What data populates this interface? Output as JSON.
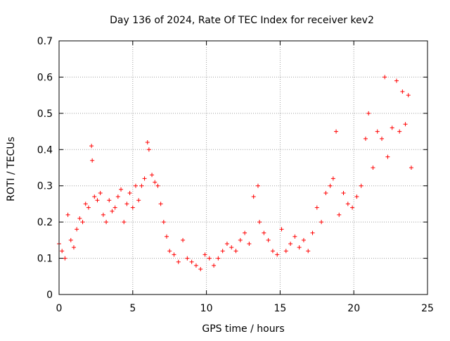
{
  "chart_data": {
    "type": "scatter",
    "title": "Day 136 of 2024, Rate Of TEC Index for receiver kev2",
    "xlabel": "GPS time / hours",
    "ylabel": "ROTI / TECUs",
    "xlim": [
      0,
      25
    ],
    "ylim": [
      0,
      0.7
    ],
    "x_ticks": [
      "0",
      "5",
      "10",
      "15",
      "20",
      "25"
    ],
    "y_ticks": [
      "0",
      "0.1",
      "0.2",
      "0.3",
      "0.4",
      "0.5",
      "0.6",
      "0.7"
    ],
    "grid": true,
    "legend": "none",
    "marker": "+",
    "color": "#ff0000",
    "series": [
      {
        "x": [
          0.0,
          0.2,
          0.4,
          0.6,
          0.8,
          1.0,
          1.2,
          1.4,
          1.6,
          1.8,
          2.0,
          2.2,
          2.25,
          2.4,
          2.6,
          2.8,
          3.0,
          3.2,
          3.4,
          3.6,
          3.8,
          4.0,
          4.2,
          4.4,
          4.6,
          4.8,
          5.0,
          5.2,
          5.4,
          5.6,
          5.8,
          6.0,
          6.1,
          6.3,
          6.5,
          6.7,
          6.9,
          7.1,
          7.3,
          7.5,
          7.8,
          8.1,
          8.4,
          8.7,
          9.0,
          9.3,
          9.6,
          9.9,
          10.2,
          10.5,
          10.8,
          11.1,
          11.4,
          11.7,
          12.0,
          12.3,
          12.6,
          12.9,
          13.2,
          13.5,
          13.6,
          13.9,
          14.2,
          14.5,
          14.8,
          15.1,
          15.4,
          15.7,
          16.0,
          16.3,
          16.6,
          16.9,
          17.2,
          17.5,
          17.8,
          18.1,
          18.4,
          18.6,
          18.8,
          19.0,
          19.3,
          19.6,
          19.9,
          20.2,
          20.5,
          20.8,
          21.0,
          21.3,
          21.6,
          21.9,
          22.1,
          22.3,
          22.6,
          22.9,
          23.1,
          23.3,
          23.5,
          23.7,
          23.9
        ],
        "y": [
          0.14,
          0.12,
          0.1,
          0.22,
          0.15,
          0.13,
          0.18,
          0.21,
          0.2,
          0.25,
          0.24,
          0.41,
          0.37,
          0.27,
          0.26,
          0.28,
          0.22,
          0.2,
          0.26,
          0.23,
          0.24,
          0.27,
          0.29,
          0.2,
          0.25,
          0.28,
          0.24,
          0.3,
          0.26,
          0.3,
          0.32,
          0.42,
          0.4,
          0.33,
          0.31,
          0.3,
          0.25,
          0.2,
          0.16,
          0.12,
          0.11,
          0.09,
          0.15,
          0.1,
          0.09,
          0.08,
          0.07,
          0.11,
          0.1,
          0.08,
          0.1,
          0.12,
          0.14,
          0.13,
          0.12,
          0.15,
          0.17,
          0.14,
          0.27,
          0.3,
          0.2,
          0.17,
          0.15,
          0.12,
          0.11,
          0.18,
          0.12,
          0.14,
          0.16,
          0.13,
          0.15,
          0.12,
          0.17,
          0.24,
          0.2,
          0.28,
          0.3,
          0.32,
          0.45,
          0.22,
          0.28,
          0.25,
          0.24,
          0.27,
          0.3,
          0.43,
          0.5,
          0.35,
          0.45,
          0.43,
          0.6,
          0.38,
          0.46,
          0.59,
          0.45,
          0.56,
          0.47,
          0.55,
          0.35
        ]
      }
    ]
  }
}
